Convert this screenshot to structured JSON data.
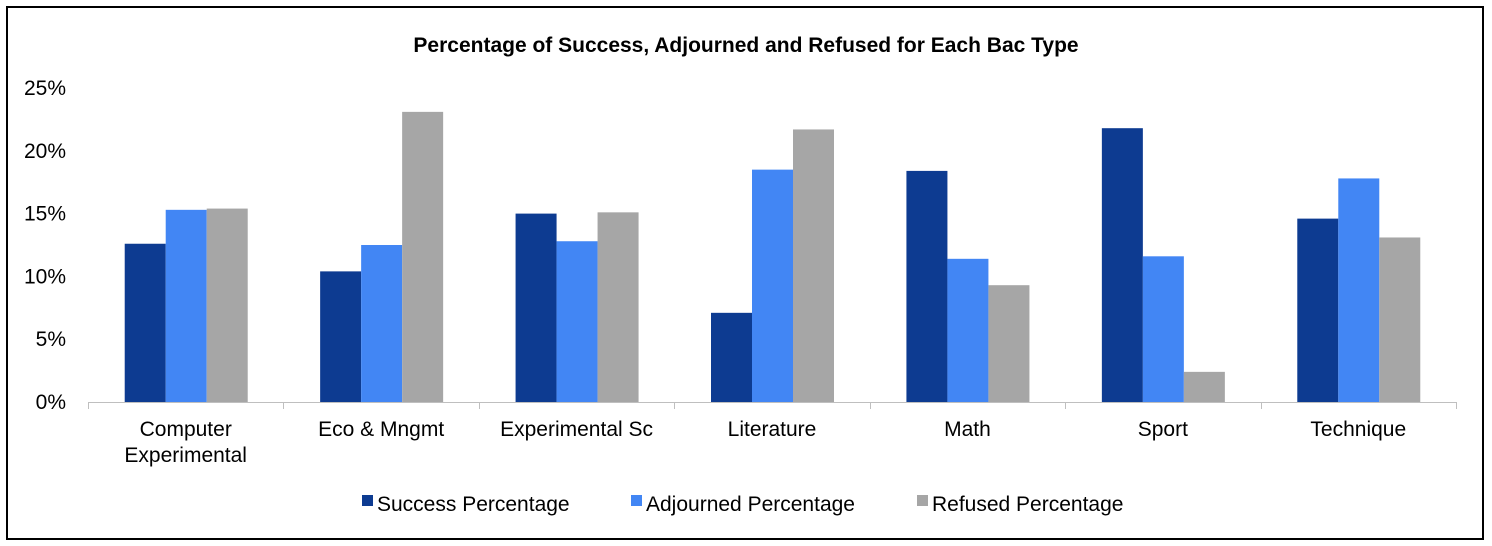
{
  "chart_data": {
    "type": "bar",
    "title": "Percentage of Success, Adjourned and Refused for Each Bac Type",
    "xlabel": "",
    "ylabel": "",
    "categories": [
      [
        "Computer",
        "Experimental"
      ],
      [
        "Eco & Mngmt"
      ],
      [
        "Experimental Sc"
      ],
      [
        "Literature"
      ],
      [
        "Math"
      ],
      [
        "Sport"
      ],
      [
        "Technique"
      ]
    ],
    "series": [
      {
        "name": "Success Percentage",
        "color": "#0D3B91",
        "values": [
          12.6,
          10.4,
          15.0,
          7.1,
          18.4,
          21.8,
          14.6
        ]
      },
      {
        "name": "Adjourned Percentage",
        "color": "#4286F4",
        "values": [
          15.3,
          12.5,
          12.8,
          18.5,
          11.4,
          11.6,
          17.8
        ]
      },
      {
        "name": "Refused Percentage",
        "color": "#A6A6A6",
        "values": [
          15.4,
          23.1,
          15.1,
          21.7,
          9.3,
          2.4,
          13.1
        ]
      }
    ],
    "ylim": [
      0,
      25
    ],
    "yticks": [
      "0%",
      "5%",
      "10%",
      "15%",
      "20%",
      "25%"
    ],
    "grid": false,
    "legend_position": "bottom"
  }
}
